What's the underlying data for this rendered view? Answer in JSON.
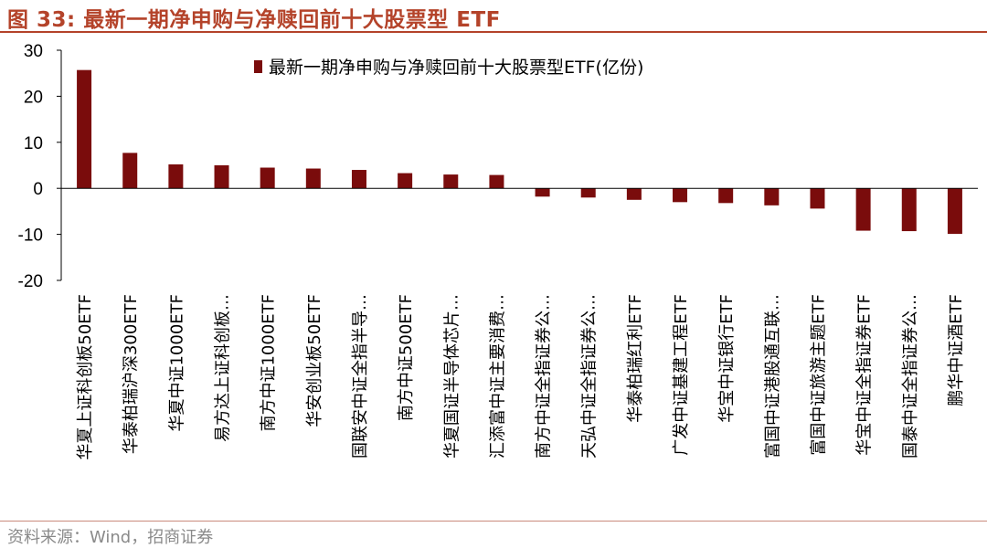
{
  "header": {
    "title": "图 33:  最新一期净申购与净赎回前十大股票型 ETF"
  },
  "footer": {
    "source": "资料来源：Wind，招商证券"
  },
  "chart_data": {
    "type": "bar",
    "title": "",
    "xlabel": "",
    "ylabel": "",
    "ylim": [
      -20,
      30
    ],
    "yticks": [
      30,
      20,
      10,
      0,
      -10,
      -20
    ],
    "grid": false,
    "legend": "top-center",
    "bar_color": "#7a0c0c",
    "categories": [
      "华夏上证科创板50ETF",
      "华泰柏瑞沪深300ETF",
      "华夏中证1000ETF",
      "易方达上证科创板…",
      "南方中证1000ETF",
      "华安创业板50ETF",
      "国联安中证全指半导…",
      "南方中证500ETF",
      "华夏国证半导体芯片…",
      "汇添富中证主要消费…",
      "南方中证全指证券公…",
      "天弘中证全指证券公…",
      "华泰柏瑞红利ETF",
      "广发中证基建工程ETF",
      "华宝中证银行ETF",
      "富国中证港股通互联…",
      "富国中证旅游主题ETF",
      "华宝中证全指证券ETF",
      "国泰中证全指证券公…",
      "鹏华中证酒ETF"
    ],
    "series": [
      {
        "name": "最新一期净申购与净赎回前十大股票型ETF(亿份)",
        "values": [
          25.7,
          7.7,
          5.2,
          5.0,
          4.5,
          4.3,
          4.0,
          3.3,
          3.0,
          2.9,
          -1.8,
          -2.0,
          -2.5,
          -3.0,
          -3.2,
          -3.7,
          -4.4,
          -9.2,
          -9.3,
          -9.9
        ]
      }
    ]
  }
}
